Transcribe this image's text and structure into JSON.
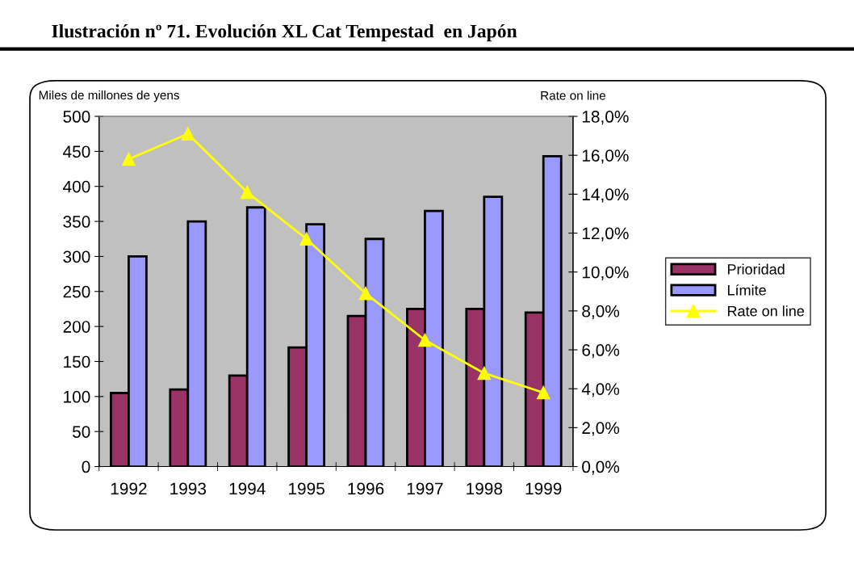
{
  "chart_data": {
    "type": "bar",
    "title": "Ilustración nº 71. Evolución XL Cat Tempestad  en Japón",
    "ylabel": "Miles de millones de yens",
    "y2label": "Rate on line",
    "categories": [
      "1992",
      "1993",
      "1994",
      "1995",
      "1996",
      "1997",
      "1998",
      "1999"
    ],
    "series": [
      {
        "name": "Prioridad",
        "color": "#993366",
        "values": [
          105,
          110,
          130,
          170,
          215,
          225,
          225,
          220
        ]
      },
      {
        "name": "Límite",
        "color": "#9999ff",
        "values": [
          300,
          350,
          370,
          346,
          325,
          365,
          385,
          443
        ]
      },
      {
        "name": "Rate on line",
        "type": "line",
        "axis": "y2",
        "color": "#ffff00",
        "marker": "triangle",
        "values": [
          15.8,
          17.1,
          14.1,
          11.7,
          8.9,
          6.5,
          4.8,
          3.8
        ]
      }
    ],
    "ylim": [
      0,
      500
    ],
    "yticks": [
      0,
      50,
      100,
      150,
      200,
      250,
      300,
      350,
      400,
      450,
      500
    ],
    "y2lim": [
      0,
      18
    ],
    "y2ticks": [
      {
        "value": 0,
        "label": "0,0%"
      },
      {
        "value": 2,
        "label": "2,0%"
      },
      {
        "value": 4,
        "label": "4,0%"
      },
      {
        "value": 6,
        "label": "6,0%"
      },
      {
        "value": 8,
        "label": "8,0%"
      },
      {
        "value": 10,
        "label": "10,0%"
      },
      {
        "value": 12,
        "label": "12,0%"
      },
      {
        "value": 14,
        "label": "14,0%"
      },
      {
        "value": 16,
        "label": "16,0%"
      },
      {
        "value": 18,
        "label": "18,0%"
      }
    ],
    "grid": false,
    "legend": "right"
  }
}
